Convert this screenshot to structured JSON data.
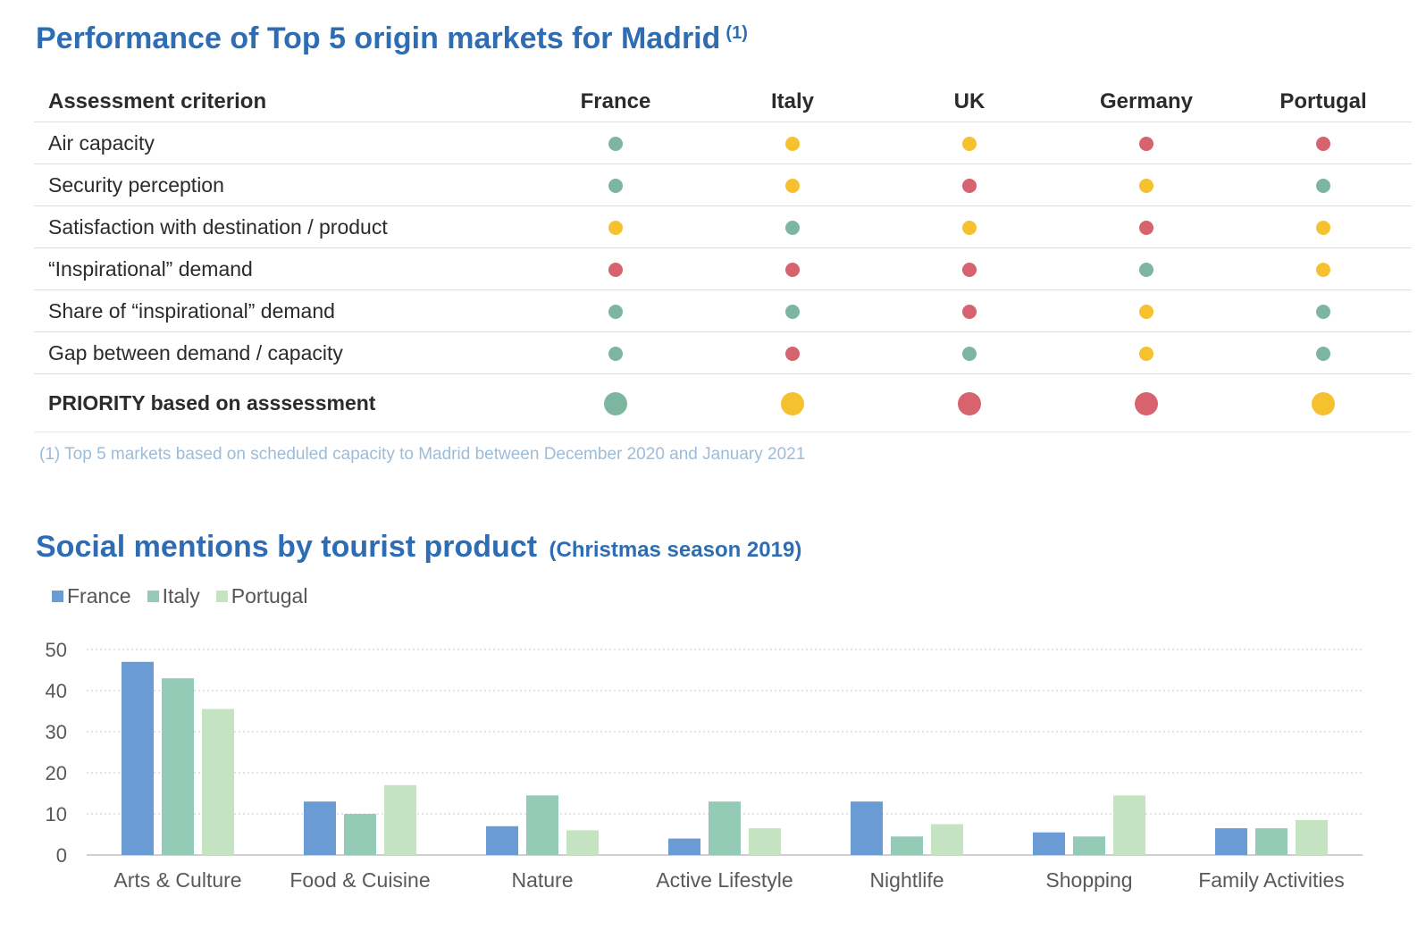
{
  "table_section": {
    "title": "Performance of Top 5 origin markets for Madrid",
    "title_note": "(1)",
    "header_label": "Assessment criterion",
    "markets": [
      "France",
      "Italy",
      "UK",
      "Germany",
      "Portugal"
    ],
    "status_colors": {
      "green": "#7db6a0",
      "yellow": "#f5c12e",
      "red": "#d6636d"
    },
    "rows": [
      {
        "label": "Air capacity",
        "ratings": [
          "green",
          "yellow",
          "yellow",
          "red",
          "red"
        ]
      },
      {
        "label": "Security perception",
        "ratings": [
          "green",
          "yellow",
          "red",
          "yellow",
          "green"
        ]
      },
      {
        "label": "Satisfaction with destination / product",
        "ratings": [
          "yellow",
          "green",
          "yellow",
          "red",
          "yellow"
        ]
      },
      {
        "label": "“Inspirational” demand",
        "ratings": [
          "red",
          "red",
          "red",
          "green",
          "yellow"
        ]
      },
      {
        "label": "Share of “inspirational” demand",
        "ratings": [
          "green",
          "green",
          "red",
          "yellow",
          "green"
        ]
      },
      {
        "label": "Gap between demand / capacity",
        "ratings": [
          "green",
          "red",
          "green",
          "yellow",
          "green"
        ]
      }
    ],
    "priority": {
      "label": "PRIORITY based on asssessment",
      "ratings": [
        "green",
        "yellow",
        "red",
        "red",
        "yellow"
      ]
    },
    "footnote": "(1) Top 5 markets based on scheduled capacity to Madrid between December 2020 and January 2021"
  },
  "chart_section": {
    "title": "Social mentions by tourist product",
    "subtitle": "(Christmas season 2019)"
  },
  "chart_data": {
    "type": "bar",
    "categories": [
      "Arts & Culture",
      "Food & Cuisine",
      "Nature",
      "Active Lifestyle",
      "Nightlife",
      "Shopping",
      "Family Activities"
    ],
    "series": [
      {
        "name": "France",
        "color": "#6b9bd4",
        "values": [
          47,
          13,
          7,
          4,
          13,
          5.5,
          6.5
        ]
      },
      {
        "name": "Italy",
        "color": "#94cbb6",
        "values": [
          43,
          10,
          14.5,
          13,
          4.5,
          4.5,
          6.5
        ]
      },
      {
        "name": "Portugal",
        "color": "#c4e3c0",
        "values": [
          35.5,
          17,
          6,
          6.5,
          7.5,
          14.5,
          8.5
        ]
      }
    ],
    "yticks": [
      0,
      10,
      20,
      30,
      40,
      50
    ],
    "ylim": [
      0,
      50
    ],
    "grid": true,
    "legend_position": "top-left"
  }
}
